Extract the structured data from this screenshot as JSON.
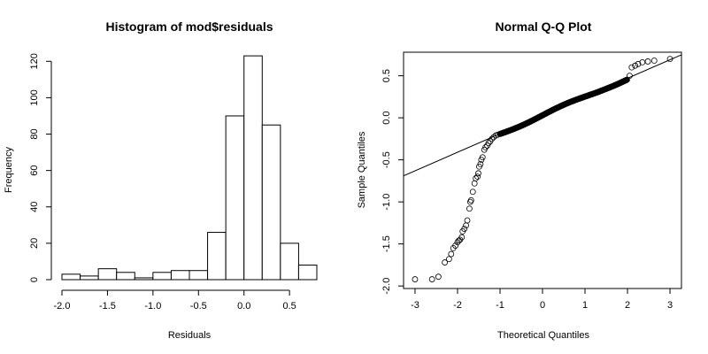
{
  "chart_data": [
    {
      "type": "bar",
      "title": "Histogram of mod$residuals",
      "xlabel": "Residuals",
      "ylabel": "Frequency",
      "xlim": [
        -2.0,
        0.8
      ],
      "ylim": [
        0,
        125
      ],
      "x_ticks": [
        "-2.0",
        "-1.5",
        "-1.0",
        "-0.5",
        "0.0",
        "0.5"
      ],
      "y_ticks": [
        "0",
        "20",
        "40",
        "60",
        "80",
        "100",
        "120"
      ],
      "bins": [
        {
          "from": -2.0,
          "to": -1.8,
          "count": 3
        },
        {
          "from": -1.8,
          "to": -1.6,
          "count": 2
        },
        {
          "from": -1.6,
          "to": -1.4,
          "count": 6
        },
        {
          "from": -1.4,
          "to": -1.2,
          "count": 4
        },
        {
          "from": -1.2,
          "to": -1.0,
          "count": 1
        },
        {
          "from": -1.0,
          "to": -0.8,
          "count": 4
        },
        {
          "from": -0.8,
          "to": -0.6,
          "count": 5
        },
        {
          "from": -0.6,
          "to": -0.4,
          "count": 5
        },
        {
          "from": -0.4,
          "to": -0.2,
          "count": 26
        },
        {
          "from": -0.2,
          "to": 0.0,
          "count": 90
        },
        {
          "from": 0.0,
          "to": 0.2,
          "count": 123
        },
        {
          "from": 0.2,
          "to": 0.4,
          "count": 85
        },
        {
          "from": 0.4,
          "to": 0.6,
          "count": 20
        },
        {
          "from": 0.6,
          "to": 0.8,
          "count": 8
        }
      ],
      "grid": false,
      "legend": "none"
    },
    {
      "type": "scatter",
      "title": "Normal Q-Q Plot",
      "xlabel": "Theoretical Quantiles",
      "ylabel": "Sample Quantiles",
      "xlim": [
        -3.0,
        3.0
      ],
      "ylim": [
        -2.0,
        0.75
      ],
      "x_ticks": [
        "-3",
        "-2",
        "-1",
        "0",
        "1",
        "2",
        "3"
      ],
      "y_ticks": [
        "-2.0",
        "-1.5",
        "-1.0",
        "-0.5",
        "0.0",
        "0.5"
      ],
      "reference_line": {
        "intercept": 0.03,
        "slope": 0.22
      },
      "points": [
        [
          -3.0,
          -1.92
        ],
        [
          -2.6,
          -1.92
        ],
        [
          -2.45,
          -1.89
        ],
        [
          -2.3,
          -1.72
        ],
        [
          -2.2,
          -1.68
        ],
        [
          -2.15,
          -1.62
        ],
        [
          -2.1,
          -1.55
        ],
        [
          -2.05,
          -1.52
        ],
        [
          -2.0,
          -1.48
        ],
        [
          -1.97,
          -1.46
        ],
        [
          -1.94,
          -1.45
        ],
        [
          -1.9,
          -1.42
        ],
        [
          -1.88,
          -1.35
        ],
        [
          -1.84,
          -1.32
        ],
        [
          -1.8,
          -1.28
        ],
        [
          -1.77,
          -1.22
        ],
        [
          -1.72,
          -1.08
        ],
        [
          -1.7,
          -1.0
        ],
        [
          -1.68,
          -0.98
        ],
        [
          -1.64,
          -0.88
        ],
        [
          -1.6,
          -0.78
        ],
        [
          -1.57,
          -0.72
        ],
        [
          -1.53,
          -0.7
        ],
        [
          -1.51,
          -0.66
        ],
        [
          -1.49,
          -0.58
        ],
        [
          -1.46,
          -0.55
        ],
        [
          -1.44,
          -0.5
        ],
        [
          -1.41,
          -0.47
        ],
        [
          -1.37,
          -0.38
        ],
        [
          -1.34,
          -0.35
        ],
        [
          -1.3,
          -0.33
        ],
        [
          -1.27,
          -0.3
        ],
        [
          -1.23,
          -0.28
        ],
        [
          -1.19,
          -0.25
        ],
        [
          -1.15,
          -0.23
        ],
        [
          -1.1,
          -0.21
        ],
        [
          -1.05,
          -0.2
        ],
        [
          2.05,
          0.5
        ],
        [
          2.1,
          0.6
        ],
        [
          2.18,
          0.62
        ],
        [
          2.25,
          0.64
        ],
        [
          2.35,
          0.66
        ],
        [
          2.48,
          0.67
        ],
        [
          2.63,
          0.68
        ],
        [
          3.0,
          0.7
        ]
      ],
      "grid": false,
      "legend": "none"
    }
  ]
}
